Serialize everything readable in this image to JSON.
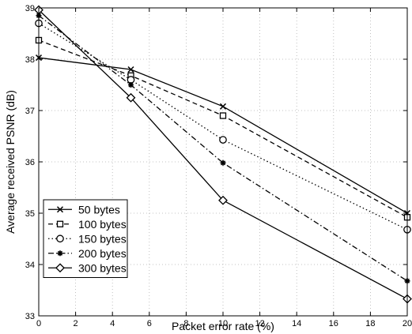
{
  "chart_data": {
    "type": "line",
    "title": "",
    "xlabel": "Packet error rate (%)",
    "ylabel": "Average received PSNR (dB)",
    "xlim": [
      0,
      20
    ],
    "ylim": [
      33,
      39
    ],
    "xticks": [
      0,
      2,
      4,
      6,
      8,
      10,
      12,
      14,
      16,
      18,
      20
    ],
    "yticks": [
      33,
      34,
      35,
      36,
      37,
      38,
      39
    ],
    "grid": true,
    "legend_position": "bottom-left",
    "x": [
      0,
      5,
      10,
      20
    ],
    "series": [
      {
        "name": "50 bytes",
        "values": [
          38.03,
          37.8,
          37.08,
          35.0
        ],
        "line": "solid",
        "marker": "x"
      },
      {
        "name": "100 bytes",
        "values": [
          38.37,
          37.68,
          36.9,
          34.92
        ],
        "line": "dashed",
        "marker": "square"
      },
      {
        "name": "150 bytes",
        "values": [
          38.7,
          37.6,
          36.43,
          34.68
        ],
        "line": "dotted",
        "marker": "circle"
      },
      {
        "name": "200 bytes",
        "values": [
          38.85,
          37.5,
          35.98,
          33.68
        ],
        "line": "dashdot",
        "marker": "star"
      },
      {
        "name": "300 bytes",
        "values": [
          38.96,
          37.25,
          35.25,
          33.33
        ],
        "line": "solid",
        "marker": "diamond"
      }
    ]
  }
}
